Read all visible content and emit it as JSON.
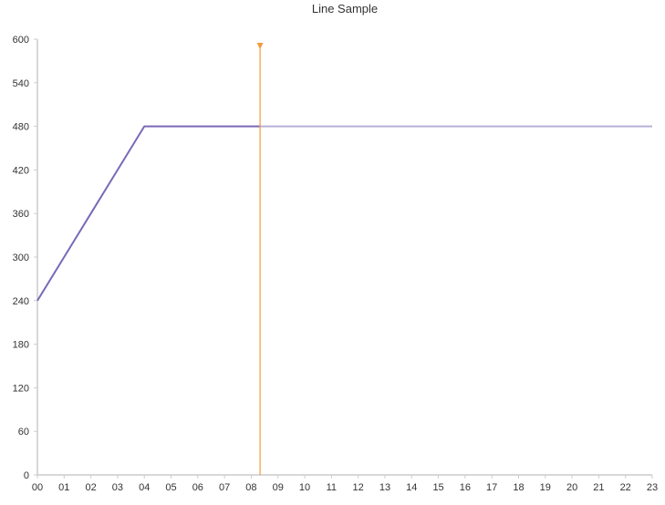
{
  "chart_data": {
    "type": "line",
    "title": "Line Sample",
    "xlabel": "",
    "ylabel": "",
    "categories": [
      "00",
      "01",
      "02",
      "03",
      "04",
      "05",
      "06",
      "07",
      "08",
      "09",
      "10",
      "11",
      "12",
      "13",
      "14",
      "15",
      "16",
      "17",
      "18",
      "19",
      "20",
      "21",
      "22",
      "23"
    ],
    "y_ticks": [
      "0",
      "60",
      "120",
      "180",
      "240",
      "300",
      "360",
      "420",
      "480",
      "540",
      "600"
    ],
    "ylim": [
      0,
      600
    ],
    "grid": false,
    "series": [
      {
        "name": "Line Sample",
        "values": [
          240,
          300,
          360,
          420,
          480,
          480,
          480,
          480,
          480,
          480,
          480,
          480,
          480,
          480,
          480,
          480,
          480,
          480,
          480,
          480,
          480,
          480,
          480,
          480
        ]
      }
    ],
    "current_time_marker": {
      "x": 8.33
    }
  },
  "colors": {
    "series_active": "#7a68b8",
    "series_future": "#b8b0d8",
    "marker": "#f39c3c",
    "axis": "#cccccc",
    "text": "#333333"
  }
}
